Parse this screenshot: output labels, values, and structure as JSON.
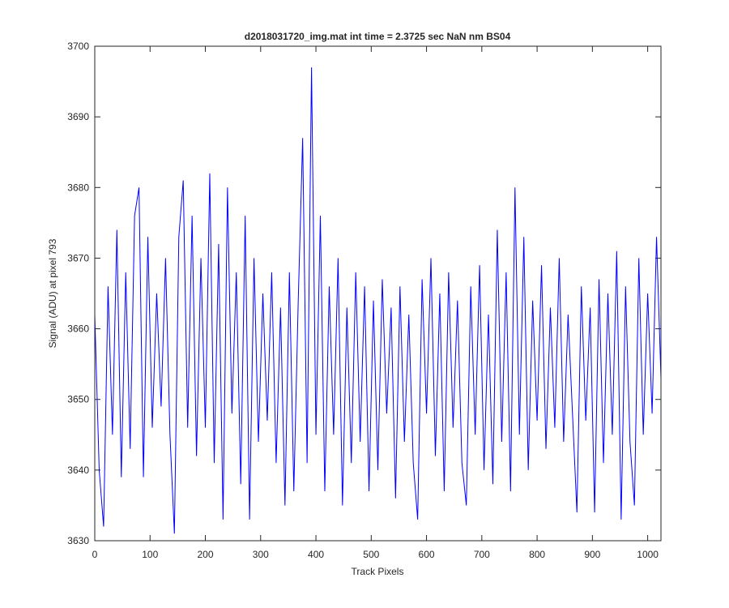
{
  "chart_data": {
    "type": "line",
    "title": "d2018031720_img.mat int time = 2.3725 sec  NaN nm BS04",
    "x_label": "Track Pixels",
    "y_label": "Signal (ADU) at pixel 793",
    "x": [
      0,
      8,
      16,
      24,
      32,
      40,
      48,
      56,
      64,
      72,
      80,
      88,
      96,
      104,
      112,
      120,
      128,
      136,
      144,
      152,
      160,
      168,
      176,
      184,
      192,
      200,
      208,
      216,
      224,
      232,
      240,
      248,
      256,
      264,
      272,
      280,
      288,
      296,
      304,
      312,
      320,
      328,
      336,
      344,
      352,
      360,
      368,
      376,
      384,
      392,
      400,
      408,
      416,
      424,
      432,
      440,
      448,
      456,
      464,
      472,
      480,
      488,
      496,
      504,
      512,
      520,
      528,
      536,
      544,
      552,
      560,
      568,
      576,
      584,
      592,
      600,
      608,
      616,
      624,
      632,
      640,
      648,
      656,
      664,
      672,
      680,
      688,
      696,
      704,
      712,
      720,
      728,
      736,
      744,
      752,
      760,
      768,
      776,
      784,
      792,
      800,
      808,
      816,
      824,
      832,
      840,
      848,
      856,
      864,
      872,
      880,
      888,
      896,
      904,
      912,
      920,
      928,
      936,
      944,
      952,
      960,
      968,
      976,
      984,
      992,
      1000,
      1008,
      1016,
      1024
    ],
    "series": [
      {
        "name": "signal",
        "color": "#0000ff",
        "values": [
          3662,
          3640,
          3632,
          3666,
          3645,
          3674,
          3639,
          3668,
          3643,
          3676,
          3680,
          3639,
          3673,
          3646,
          3665,
          3649,
          3670,
          3645,
          3631,
          3673,
          3681,
          3646,
          3676,
          3642,
          3670,
          3646,
          3682,
          3641,
          3672,
          3633,
          3680,
          3648,
          3668,
          3638,
          3676,
          3633,
          3670,
          3644,
          3665,
          3647,
          3668,
          3641,
          3663,
          3635,
          3668,
          3637,
          3664,
          3687,
          3641,
          3697,
          3645,
          3676,
          3637,
          3666,
          3645,
          3670,
          3635,
          3663,
          3641,
          3668,
          3644,
          3666,
          3637,
          3664,
          3640,
          3667,
          3648,
          3663,
          3636,
          3666,
          3644,
          3662,
          3641,
          3633,
          3667,
          3648,
          3670,
          3642,
          3665,
          3637,
          3668,
          3646,
          3664,
          3641,
          3635,
          3666,
          3645,
          3669,
          3640,
          3662,
          3638,
          3674,
          3644,
          3668,
          3637,
          3680,
          3645,
          3673,
          3640,
          3664,
          3647,
          3669,
          3643,
          3663,
          3646,
          3670,
          3644,
          3662,
          3648,
          3634,
          3666,
          3647,
          3663,
          3634,
          3667,
          3641,
          3665,
          3645,
          3671,
          3633,
          3666,
          3644,
          3635,
          3670,
          3645,
          3665,
          3648,
          3673,
          3653
        ]
      }
    ],
    "xlim": [
      0,
      1024
    ],
    "ylim": [
      3630,
      3700
    ],
    "xticks": [
      0,
      100,
      200,
      300,
      400,
      500,
      600,
      700,
      800,
      900,
      1000
    ],
    "yticks": [
      3630,
      3640,
      3650,
      3660,
      3670,
      3680,
      3690,
      3700
    ],
    "grid": false
  }
}
